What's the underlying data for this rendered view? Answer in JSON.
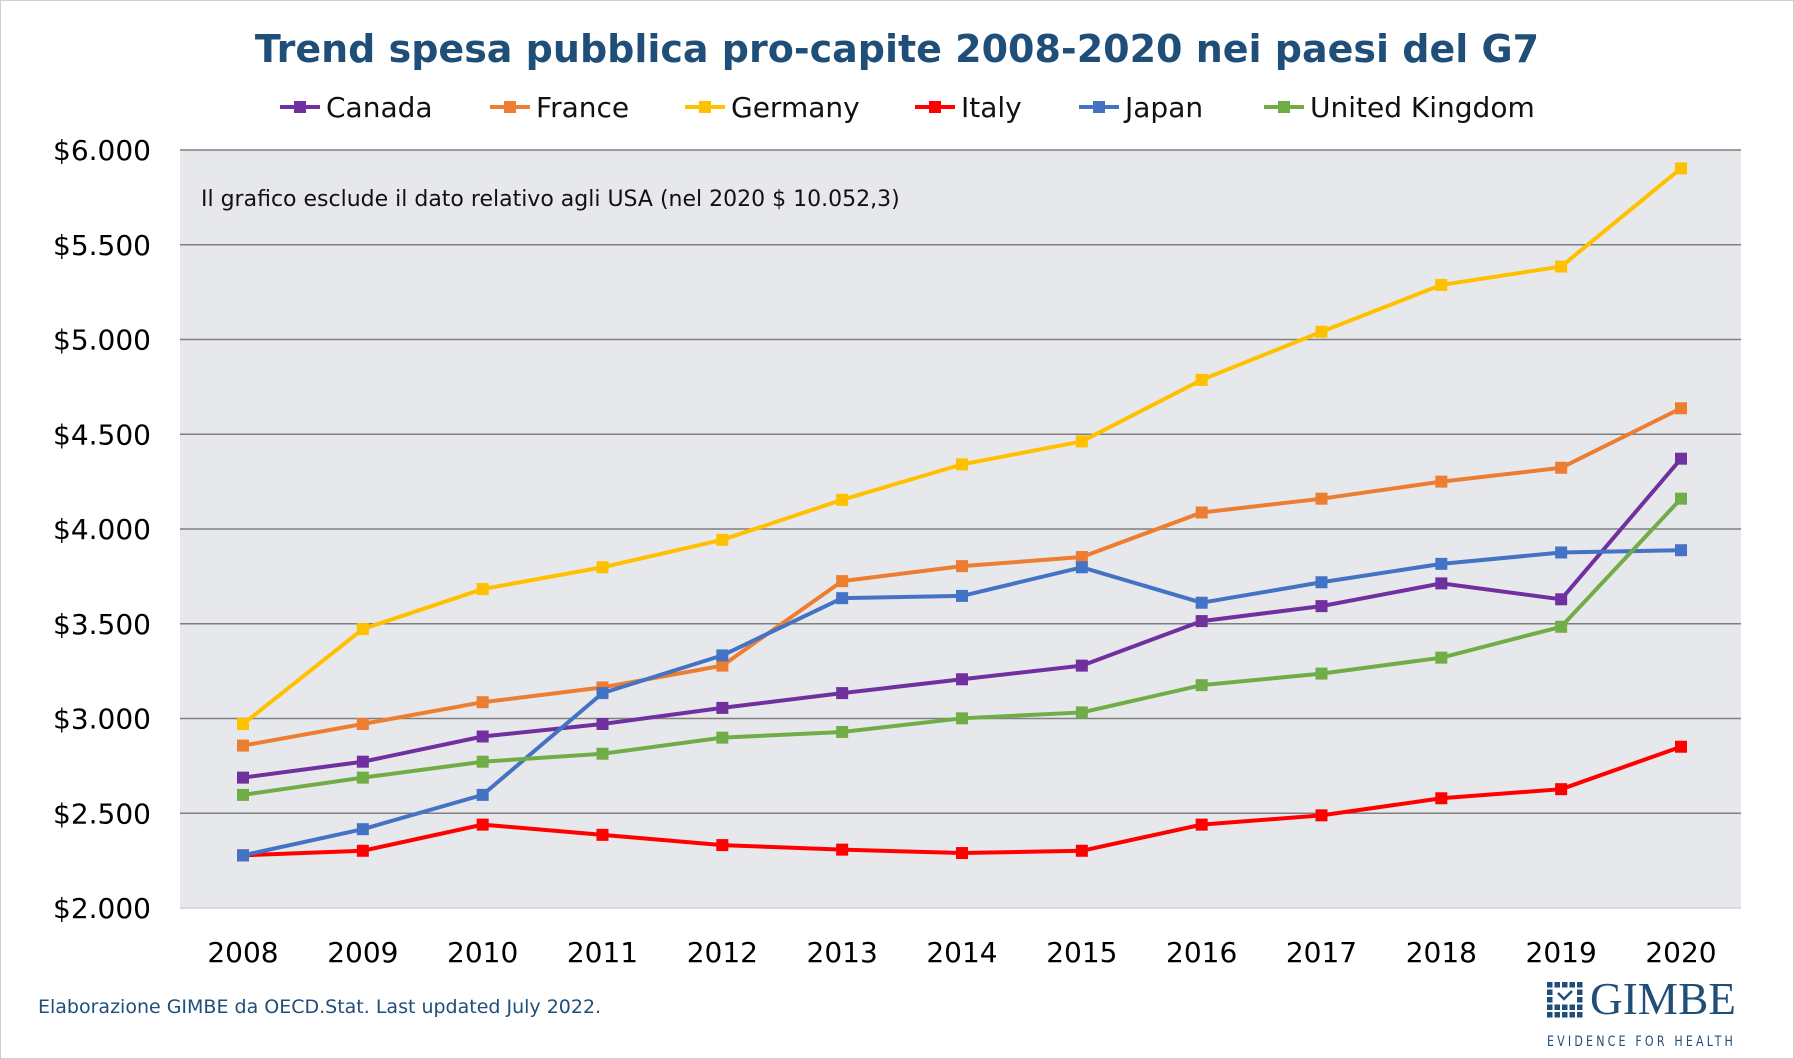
{
  "chart_data": {
    "type": "line",
    "title": "Trend spesa pubblica pro-capite 2008-2020 nei paesi del G7",
    "annotation": "Il grafico esclude  il dato relativo agli USA (nel 2020 $ 10.052,3)",
    "xlabel": "",
    "ylabel": "",
    "x": [
      "2008",
      "2009",
      "2010",
      "2011",
      "2012",
      "2013",
      "2014",
      "2015",
      "2016",
      "2017",
      "2018",
      "2019",
      "2020"
    ],
    "ylim": [
      2000,
      6000
    ],
    "yticks": [
      2000,
      2500,
      3000,
      3500,
      4000,
      4500,
      5000,
      5500,
      6000
    ],
    "ytick_labels": [
      "$2.000",
      "$2.500",
      "$3.000",
      "$3.500",
      "$4.000",
      "$4.500",
      "$5.000",
      "$5.500",
      "$6.000"
    ],
    "grid": true,
    "legend_placement": "top",
    "series": [
      {
        "name": "Canada",
        "color": "#7030A0",
        "values": [
          2688,
          2772,
          2905,
          2971,
          3056,
          3134,
          3207,
          3279,
          3514,
          3593,
          3713,
          3629,
          4371
        ]
      },
      {
        "name": "France",
        "color": "#ED7D31",
        "values": [
          2857,
          2971,
          3086,
          3164,
          3279,
          3725,
          3804,
          3852,
          4087,
          4160,
          4250,
          4323,
          4637
        ]
      },
      {
        "name": "Germany",
        "color": "#FFC000",
        "values": [
          2971,
          3472,
          3683,
          3798,
          3943,
          4154,
          4341,
          4462,
          4787,
          5041,
          5288,
          5385,
          5903
        ]
      },
      {
        "name": "Italy",
        "color": "#FF0000",
        "values": [
          2278,
          2302,
          2440,
          2386,
          2332,
          2308,
          2290,
          2302,
          2440,
          2489,
          2579,
          2627,
          2851
        ]
      },
      {
        "name": "Japan",
        "color": "#4472C4",
        "values": [
          2278,
          2416,
          2597,
          3134,
          3333,
          3635,
          3647,
          3798,
          3611,
          3719,
          3816,
          3876,
          3888
        ]
      },
      {
        "name": "United Kingdom",
        "color": "#70AD47",
        "values": [
          2597,
          2688,
          2772,
          2814,
          2899,
          2929,
          3001,
          3032,
          3176,
          3237,
          3321,
          3484,
          4160
        ]
      }
    ]
  },
  "footer": {
    "source": "Elaborazione GIMBE da OECD.Stat. Last updated July 2022.",
    "logo_text": "GIMBE",
    "logo_tagline": "EVIDENCE FOR HEALTH"
  },
  "colors": {
    "title": "#1F4E79",
    "plot_background": "#E7E8EC",
    "gridline": "#7F7F7F"
  }
}
